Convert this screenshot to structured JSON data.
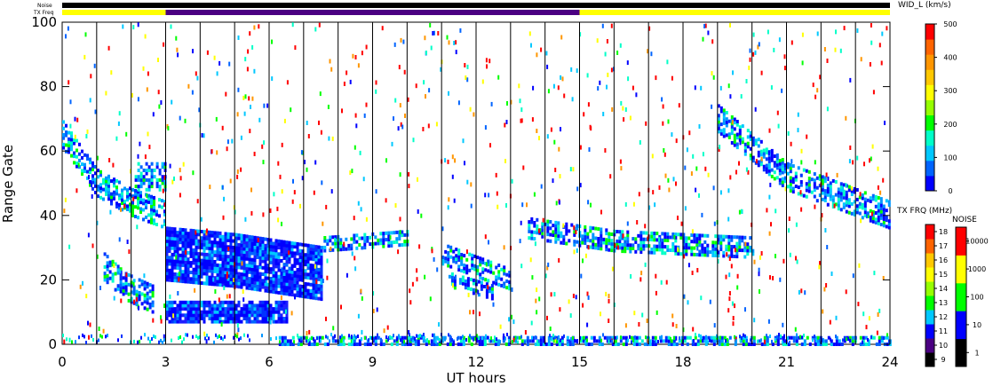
{
  "chart_data": {
    "type": "heatmap",
    "title": "",
    "xlabel": "UT hours",
    "ylabel": "Range Gate",
    "xlim": [
      0,
      24
    ],
    "ylim": [
      0,
      100
    ],
    "x_ticks": [
      "0",
      "3",
      "6",
      "9",
      "12",
      "15",
      "18",
      "21",
      "24"
    ],
    "y_ticks": [
      "0",
      "20",
      "40",
      "60",
      "80",
      "100"
    ],
    "vertical_lines_ut": [
      1,
      2,
      3,
      4,
      5,
      6,
      7,
      8,
      9,
      10,
      11,
      12,
      13,
      14,
      15,
      16,
      17,
      18,
      19,
      20,
      21,
      22,
      23
    ],
    "status_bars": {
      "noise_label": "Noise",
      "txfreq_label": "TX Freq",
      "txfreq_segments": [
        {
          "start": 0,
          "end": 3,
          "color": "#ffff00"
        },
        {
          "start": 3,
          "end": 15,
          "color": "#4b0082"
        },
        {
          "start": 15,
          "end": 24,
          "color": "#ffff00"
        }
      ]
    },
    "colorbar_width": {
      "title": "WID_L (km/s)",
      "ticks": [
        "0",
        "100",
        "200",
        "300",
        "400",
        "500"
      ],
      "range": [
        0,
        500
      ],
      "colors": [
        "#0000ff",
        "#0064ff",
        "#00c8ff",
        "#00ffc8",
        "#00ff00",
        "#96ff00",
        "#ffff00",
        "#ffc800",
        "#ff9600",
        "#ff6400",
        "#ff0000"
      ]
    },
    "colorbar_txfreq": {
      "title": "TX FRQ (MHz)",
      "ticks": [
        "9",
        "10",
        "11",
        "12",
        "13",
        "14",
        "15",
        "16",
        "17",
        "18"
      ],
      "colors": [
        "#000000",
        "#4b0082",
        "#0000ff",
        "#00c8ff",
        "#00ff00",
        "#96ff00",
        "#ffff00",
        "#ffc800",
        "#ff6400",
        "#ff0000"
      ]
    },
    "colorbar_noise": {
      "title": "NOISE",
      "ticks": [
        "1",
        "10",
        "100",
        "1000",
        "10000"
      ],
      "colors": [
        "#000000",
        "#0000ff",
        "#00ff00",
        "#ffff00",
        "#ff0000"
      ]
    },
    "scatter_bands": [
      {
        "name": "Early morning descending band",
        "x": [
          0,
          1,
          2,
          3
        ],
        "y": [
          65,
          50,
          44,
          40
        ],
        "half_width_gates": 4,
        "dominant": "blue"
      },
      {
        "name": "Early pre-dawn echo patch",
        "x": [
          2.1,
          3
        ],
        "y": [
          52,
          52
        ],
        "half_width_gates": 4,
        "dominant": "blue"
      },
      {
        "name": "Lower arc 1-3 UT",
        "x": [
          1.2,
          1.8,
          2.6
        ],
        "y": [
          24,
          18,
          14
        ],
        "half_width_gates": 4,
        "dominant": "blue"
      },
      {
        "name": "Main dense block 3-8 UT",
        "x": [
          3.0,
          5.0,
          7.5
        ],
        "y": [
          28,
          26,
          22
        ],
        "half_width_gates": 8,
        "dominant": "darkblue"
      },
      {
        "name": "Lower band 3-6.5 UT",
        "x": [
          3.0,
          6.5
        ],
        "y": [
          10,
          10
        ],
        "half_width_gates": 3,
        "dominant": "darkblue"
      },
      {
        "name": "Band 8-10 UT",
        "x": [
          7.5,
          10
        ],
        "y": [
          31,
          33
        ],
        "half_width_gates": 2,
        "dominant": "blue"
      },
      {
        "name": "Rising band 11-13 UT",
        "x": [
          11.0,
          12.0,
          13.0
        ],
        "y": [
          28,
          24,
          20
        ],
        "half_width_gates": 3,
        "dominant": "blue"
      },
      {
        "name": "Lower arc 11-13 UT",
        "x": [
          11.2,
          12.5
        ],
        "y": [
          20,
          16
        ],
        "half_width_gates": 2,
        "dominant": "blue"
      },
      {
        "name": "Afternoon band 14-20 UT",
        "x": [
          13.5,
          16,
          20
        ],
        "y": [
          36,
          32,
          30
        ],
        "half_width_gates": 3,
        "dominant": "blue"
      },
      {
        "name": "Evening descending band",
        "x": [
          19.0,
          21.0,
          24.0
        ],
        "y": [
          70,
          52,
          40
        ],
        "half_width_gates": 4,
        "dominant": "blue"
      },
      {
        "name": "Ground scatter 6-24 UT",
        "x": [
          6.2,
          24
        ],
        "y": [
          1,
          1
        ],
        "half_width_gates": 1,
        "dominant": "blue"
      }
    ]
  }
}
